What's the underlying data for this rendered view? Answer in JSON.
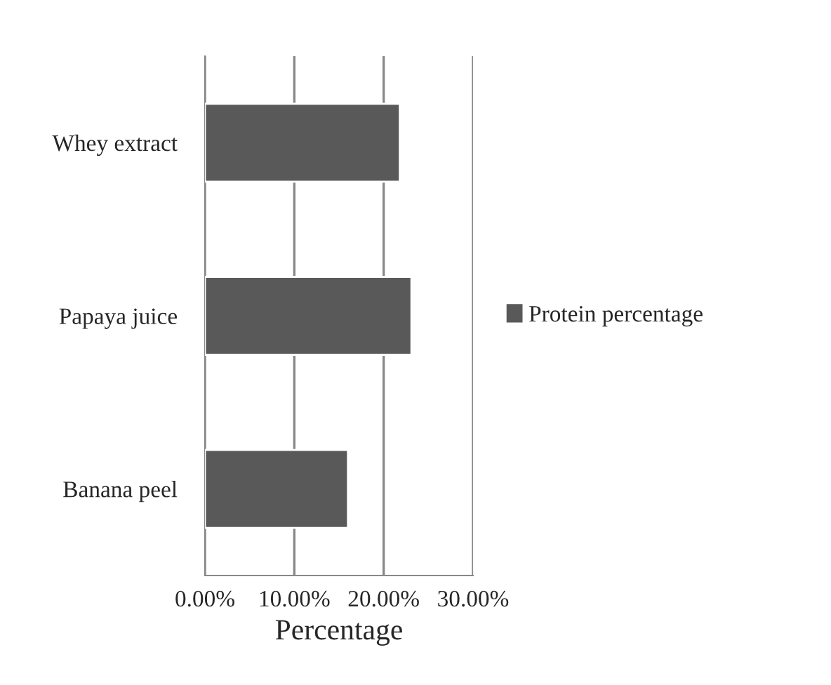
{
  "chart_data": {
    "type": "bar",
    "orientation": "horizontal",
    "xlabel": "Percentage",
    "categories": [
      "Whey extract",
      "Papaya juice",
      "Banana peel"
    ],
    "series": [
      {
        "name": "Protein percentage",
        "color": "#595959",
        "values": [
          21.8,
          23.1,
          16.0
        ]
      }
    ],
    "xlim": [
      0,
      30
    ],
    "xticks": [
      {
        "value": 0,
        "label": "0.00%"
      },
      {
        "value": 10,
        "label": "10.00%"
      },
      {
        "value": 20,
        "label": "20.00%"
      },
      {
        "value": 30,
        "label": "30.00%"
      }
    ],
    "grid": "x",
    "legend": "right"
  }
}
